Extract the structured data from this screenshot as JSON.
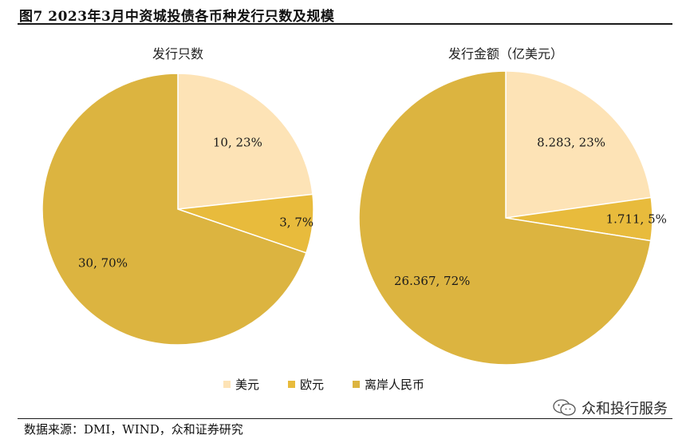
{
  "figure": {
    "title": "图7 2023年3月中资城投债各币种发行只数及规模",
    "source": "数据来源：DMI，WIND，众和证券研究",
    "watermark": "众和投行服务",
    "watermark_icon": "wechat-icon"
  },
  "colors": {
    "美元": "#fde3b6",
    "欧元": "#e8bb3c",
    "离岸人民币": "#dcb440"
  },
  "legend": {
    "items": [
      {
        "label": "美元",
        "color": "#fde3b6"
      },
      {
        "label": "欧元",
        "color": "#e8bb3c"
      },
      {
        "label": "离岸人民币",
        "color": "#dcb440"
      }
    ]
  },
  "chart_data": [
    {
      "type": "pie",
      "title": "发行只数",
      "categories": [
        "美元",
        "欧元",
        "离岸人民币"
      ],
      "values": [
        10,
        3,
        30
      ],
      "percent_labels": [
        "23%",
        "7%",
        "70%"
      ],
      "data_labels": [
        "10, 23%",
        "3, 7%",
        "30, 70%"
      ]
    },
    {
      "type": "pie",
      "title": "发行金额（亿美元）",
      "categories": [
        "美元",
        "欧元",
        "离岸人民币"
      ],
      "values": [
        8.283,
        1.711,
        26.367
      ],
      "percent_labels": [
        "23%",
        "5%",
        "72%"
      ],
      "data_labels": [
        "8.283, 23%",
        "1.711, 5%",
        "26.367, 72%"
      ]
    }
  ]
}
